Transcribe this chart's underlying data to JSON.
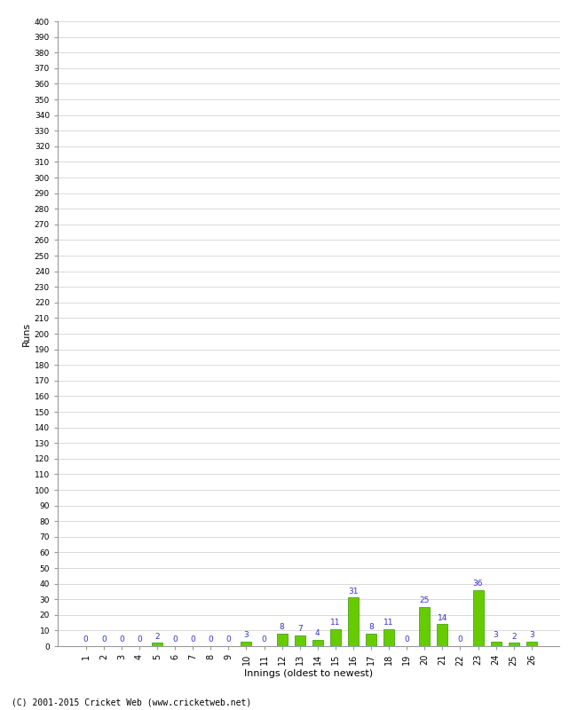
{
  "xlabel": "Innings (oldest to newest)",
  "ylabel": "Runs",
  "values": [
    0,
    0,
    0,
    0,
    2,
    0,
    0,
    0,
    0,
    3,
    0,
    8,
    7,
    4,
    11,
    31,
    8,
    11,
    0,
    25,
    14,
    0,
    36,
    3,
    2,
    3
  ],
  "categories": [
    "1",
    "2",
    "3",
    "4",
    "5",
    "6",
    "7",
    "8",
    "9",
    "10",
    "11",
    "12",
    "13",
    "14",
    "15",
    "16",
    "17",
    "18",
    "19",
    "20",
    "21",
    "22",
    "23",
    "24",
    "25",
    "26"
  ],
  "bar_color": "#66cc00",
  "bar_edge_color": "#339900",
  "label_color": "#3333cc",
  "ylim": [
    0,
    400
  ],
  "background_color": "#ffffff",
  "grid_color": "#cccccc",
  "footer": "(C) 2001-2015 Cricket Web (www.cricketweb.net)"
}
